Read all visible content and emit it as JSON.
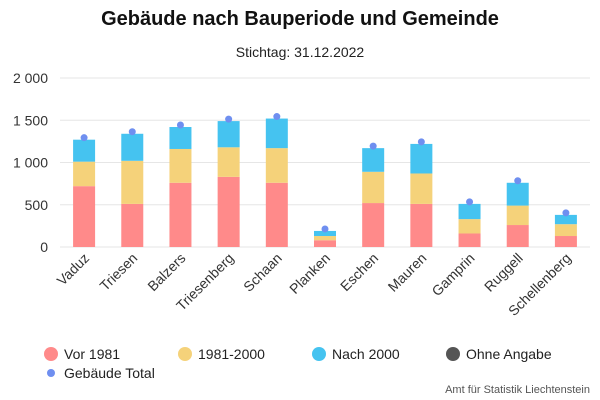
{
  "chart_data": {
    "type": "bar",
    "stacked": true,
    "title": "Gebäude nach Bauperiode und Gemeinde",
    "subtitle": "Stichtag: 31.12.2022",
    "categories": [
      "Vaduz",
      "Triesen",
      "Balzers",
      "Triesenberg",
      "Schaan",
      "Planken",
      "Eschen",
      "Mauren",
      "Gamprin",
      "Ruggell",
      "Schellenberg"
    ],
    "series": [
      {
        "name": "Vor 1981",
        "color": "#ff8a8a",
        "values": [
          720,
          510,
          760,
          830,
          760,
          80,
          520,
          510,
          160,
          260,
          130
        ]
      },
      {
        "name": "1981-2000",
        "color": "#f5d27a",
        "values": [
          290,
          510,
          400,
          350,
          410,
          50,
          370,
          360,
          170,
          230,
          140
        ]
      },
      {
        "name": "Nach 2000",
        "color": "#45c3f0",
        "values": [
          260,
          320,
          260,
          310,
          350,
          60,
          280,
          350,
          180,
          270,
          110
        ]
      },
      {
        "name": "Ohne Angabe",
        "color": "#555555",
        "values": [
          0,
          0,
          0,
          0,
          0,
          0,
          0,
          0,
          0,
          0,
          0
        ]
      }
    ],
    "totals": {
      "name": "Gebäude Total",
      "color": "#6f8ff0",
      "values": [
        1270,
        1340,
        1420,
        1490,
        1520,
        190,
        1170,
        1220,
        510,
        760,
        380
      ]
    },
    "ylim": [
      0,
      2000
    ],
    "yticks": [
      0,
      500,
      1000,
      1500,
      2000
    ],
    "ytick_labels": [
      "0",
      "500",
      "1 000",
      "1 500",
      "2 000"
    ],
    "grid": true,
    "legend_position": "bottom"
  },
  "credit": "Amt für Statistik Liechtenstein"
}
